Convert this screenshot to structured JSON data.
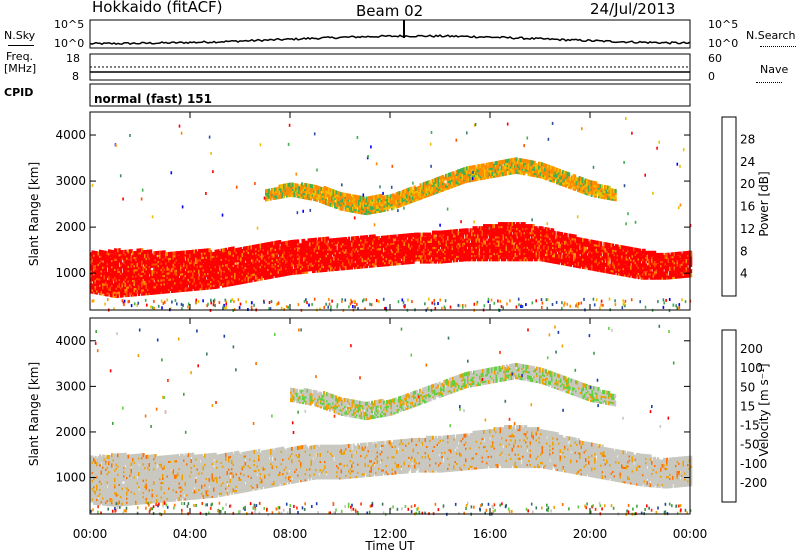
{
  "header": {
    "station": "Hokkaido (fitACF)",
    "beam": "Beam 02",
    "date": "24/Jul/2013"
  },
  "sky_panel": {
    "left_label": "N.Sky",
    "right_label": "N.Search",
    "left_ticks": [
      "10^5",
      "10^0"
    ],
    "right_ticks": [
      "10^5",
      "10^0"
    ]
  },
  "freq_panel": {
    "left_label_1": "Freq.",
    "left_label_2": "[MHz]",
    "right_label": "Nave",
    "left_ticks": [
      "18",
      "8"
    ],
    "right_ticks": [
      "60",
      "0"
    ]
  },
  "cpid": {
    "label": "CPID",
    "value": "normal (fast) 151"
  },
  "chart_data": [
    {
      "type": "heatmap",
      "title": "",
      "xlabel": "",
      "ylabel": "Slant Range [km]",
      "xlim": [
        "00:00",
        "24:00"
      ],
      "ylim": [
        200,
        4500
      ],
      "x_ticks": [
        "00:00",
        "04:00",
        "08:00",
        "12:00",
        "16:00",
        "20:00",
        "00:00"
      ],
      "y_ticks": [
        1000,
        2000,
        3000,
        4000
      ],
      "colorbar": {
        "label": "Power [dB]",
        "ticks": [
          "4",
          "8",
          "12",
          "16",
          "20",
          "24",
          "28"
        ],
        "colors": [
          "#0000ff",
          "#2a4fa0",
          "#3a8a6a",
          "#41b050",
          "#f0c000",
          "#ff8c00",
          "#ff5000",
          "#ff0000"
        ]
      },
      "bands": [
        {
          "name": "main",
          "x": [
            0,
            1,
            2,
            3,
            4,
            5,
            6,
            7,
            8,
            9,
            10,
            11,
            12,
            13,
            14,
            15,
            16,
            17,
            18,
            19,
            20,
            21,
            22,
            23,
            24
          ],
          "low": [
            600,
            500,
            550,
            600,
            650,
            700,
            800,
            900,
            1000,
            1050,
            1100,
            1150,
            1200,
            1250,
            1250,
            1300,
            1300,
            1300,
            1300,
            1200,
            1100,
            1000,
            900,
            900,
            950
          ],
          "high": [
            1450,
            1500,
            1500,
            1450,
            1500,
            1500,
            1550,
            1650,
            1700,
            1750,
            1750,
            1800,
            1800,
            1850,
            1900,
            1950,
            2050,
            2100,
            2000,
            1850,
            1700,
            1600,
            1500,
            1400,
            1450
          ],
          "value": 28
        },
        {
          "name": "upper",
          "x": [
            7,
            8,
            9,
            10,
            11,
            12,
            13,
            14,
            15,
            16,
            17,
            18,
            19,
            20,
            21
          ],
          "low": [
            2600,
            2700,
            2600,
            2400,
            2300,
            2400,
            2600,
            2800,
            3000,
            3100,
            3200,
            3100,
            2900,
            2700,
            2600
          ],
          "high": [
            2800,
            2950,
            2900,
            2750,
            2650,
            2700,
            2900,
            3100,
            3300,
            3400,
            3500,
            3400,
            3200,
            3000,
            2800
          ],
          "value": 20
        }
      ]
    },
    {
      "type": "heatmap",
      "title": "",
      "xlabel": "Time UT",
      "ylabel": "Slant Range [km]",
      "xlim": [
        "00:00",
        "24:00"
      ],
      "ylim": [
        200,
        4500
      ],
      "x_ticks": [
        "00:00",
        "04:00",
        "08:00",
        "12:00",
        "16:00",
        "20:00",
        "00:00"
      ],
      "y_ticks": [
        1000,
        2000,
        3000,
        4000
      ],
      "colorbar": {
        "label": "Velocity [m s⁻¹]",
        "ticks": [
          "200",
          "100",
          "50",
          "15",
          "-15",
          "-50",
          "-100",
          "-200"
        ],
        "colors": [
          "#1f3fa8",
          "#3a7a5a",
          "#41a040",
          "#60d040",
          "#c8c8c0",
          "#f0a000",
          "#ff7000",
          "#ff3000",
          "#ff0000"
        ]
      },
      "bands": [
        {
          "name": "main",
          "x": [
            0,
            1,
            2,
            3,
            4,
            5,
            6,
            7,
            8,
            9,
            10,
            11,
            12,
            13,
            14,
            15,
            16,
            17,
            18,
            19,
            20,
            21,
            22,
            23,
            24
          ],
          "low": [
            450,
            400,
            450,
            500,
            550,
            600,
            700,
            800,
            900,
            1000,
            1000,
            1050,
            1100,
            1150,
            1150,
            1200,
            1250,
            1250,
            1250,
            1150,
            1050,
            950,
            850,
            800,
            850
          ],
          "high": [
            1450,
            1500,
            1500,
            1450,
            1500,
            1500,
            1550,
            1600,
            1650,
            1700,
            1700,
            1750,
            1800,
            1850,
            1900,
            1950,
            2050,
            2150,
            2050,
            1900,
            1750,
            1600,
            1500,
            1400,
            1450
          ],
          "value": 0
        },
        {
          "name": "upper",
          "x": [
            8,
            9,
            10,
            11,
            12,
            13,
            14,
            15,
            16,
            17,
            18,
            19,
            20,
            21
          ],
          "low": [
            2700,
            2600,
            2400,
            2300,
            2400,
            2600,
            2800,
            3000,
            3100,
            3200,
            3100,
            2900,
            2700,
            2600
          ],
          "high": [
            2950,
            2900,
            2750,
            2650,
            2700,
            2900,
            3100,
            3300,
            3400,
            3500,
            3400,
            3200,
            3000,
            2800
          ],
          "value": 15
        }
      ]
    }
  ]
}
